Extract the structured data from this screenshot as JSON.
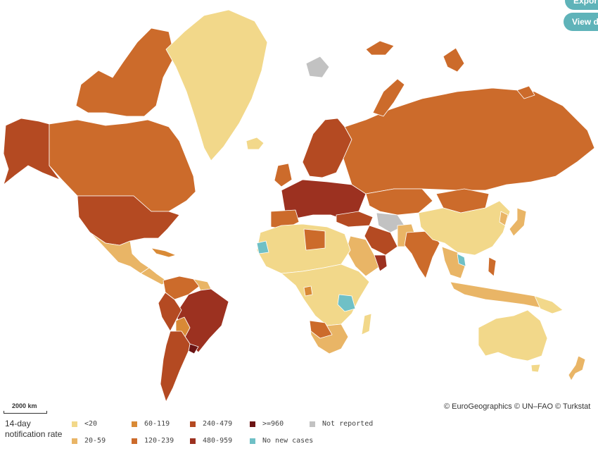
{
  "buttons": {
    "export": "Export",
    "view_data": "View data"
  },
  "credits": "© EuroGeographics © UN–FAO © Turkstat",
  "scale_label": "2000 km",
  "legend": {
    "title_line1": "14-day",
    "title_line2": "notification rate",
    "items": [
      {
        "label": "<20",
        "color": "#f2d88a"
      },
      {
        "label": "20-59",
        "color": "#e9b566"
      },
      {
        "label": "60-119",
        "color": "#d98a36"
      },
      {
        "label": "120-239",
        "color": "#cc6b2b"
      },
      {
        "label": "240-479",
        "color": "#b44a22"
      },
      {
        "label": "480-959",
        "color": "#9c3120"
      },
      {
        "label": ">=960",
        "color": "#6b1414"
      },
      {
        "label": "No new cases",
        "color": "#6fc0c6"
      },
      {
        "label": "Not reported",
        "color": "#c2c2c2"
      }
    ]
  }
}
